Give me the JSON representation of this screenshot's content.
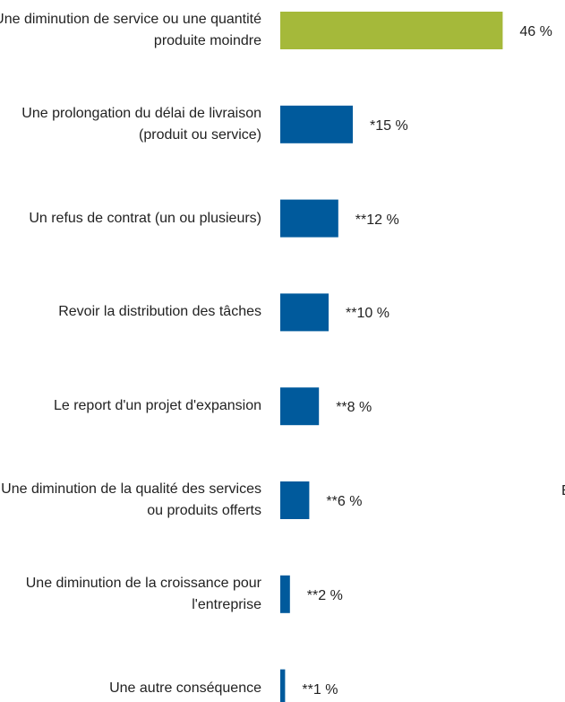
{
  "chart_data": {
    "type": "bar",
    "orientation": "horizontal",
    "categories": [
      "Une diminution de service ou une quantité produite moindre",
      "Une prolongation du délai de livraison (produit ou service)",
      "Un refus de contrat (un ou plusieurs)",
      "Revoir la distribution des tâches",
      "Le report d'un projet d'expansion",
      "Une diminution de la qualité des services ou produits offerts",
      "Une diminution de la croissance pour l'entreprise",
      "Une autre conséquence"
    ],
    "values": [
      46,
      15,
      12,
      10,
      8,
      6,
      2,
      1
    ],
    "value_labels": [
      "46 %",
      "*15 %",
      "**12 %",
      "**10 %",
      "**8 %",
      "**6 %",
      "**2 %",
      "**1 %"
    ],
    "colors": [
      "#a5b93a",
      "#005a9c",
      "#005a9c",
      "#005a9c",
      "#005a9c",
      "#005a9c",
      "#005a9c",
      "#005a9c"
    ],
    "annotation": "E"
  }
}
